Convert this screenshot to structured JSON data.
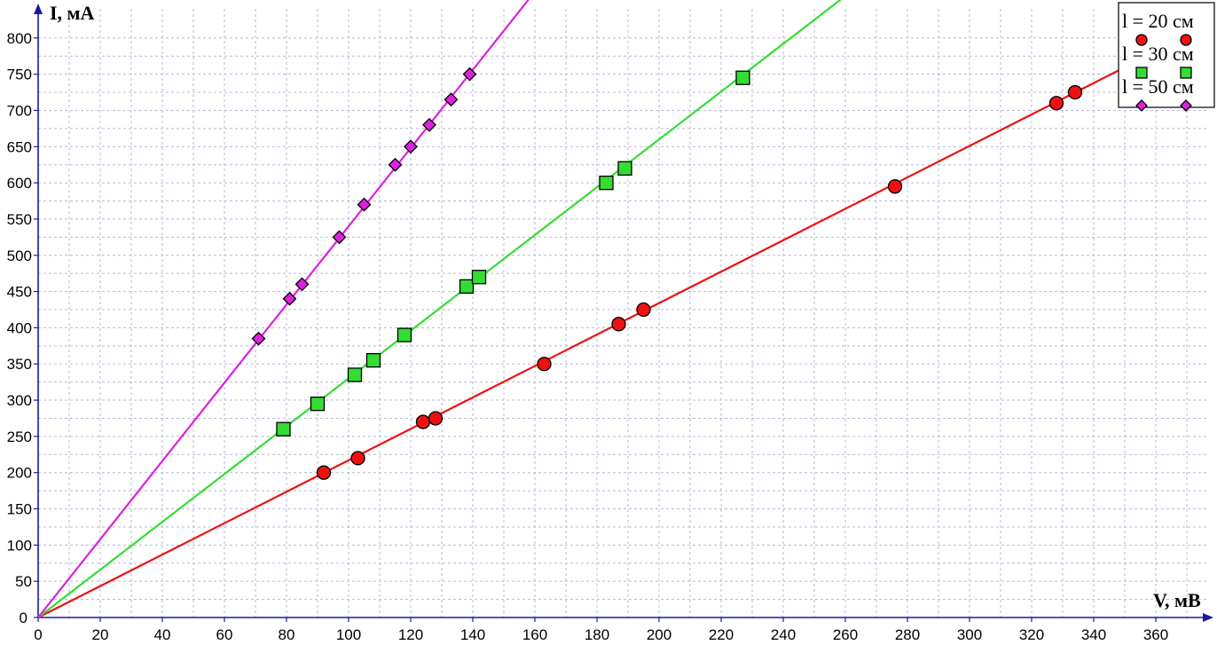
{
  "chart_data": {
    "type": "scatter",
    "xlabel": "V, мВ",
    "ylabel": "I, мА",
    "xlim": [
      0,
      370
    ],
    "ylim": [
      0,
      820
    ],
    "x_ticks": [
      0,
      20,
      40,
      60,
      80,
      100,
      120,
      140,
      160,
      180,
      200,
      220,
      240,
      260,
      280,
      300,
      320,
      340,
      360
    ],
    "y_ticks": [
      0,
      50,
      100,
      150,
      200,
      250,
      300,
      350,
      400,
      450,
      500,
      550,
      600,
      650,
      700,
      750,
      800
    ],
    "grid": true,
    "legend_position": "top-right",
    "series": [
      {
        "name": "l = 20 см",
        "color": "#ee1111",
        "marker": "circle",
        "fit_slope": 2.17,
        "x": [
          92,
          103,
          124,
          128,
          163,
          187,
          195,
          276,
          328,
          334
        ],
        "y": [
          200,
          220,
          270,
          275,
          350,
          405,
          425,
          595,
          710,
          725
        ]
      },
      {
        "name": "l = 30 см",
        "color": "#33dd33",
        "marker": "square",
        "fit_slope": 3.3,
        "x": [
          79,
          90,
          102,
          108,
          118,
          138,
          142,
          183,
          189,
          227
        ],
        "y": [
          260,
          295,
          335,
          355,
          390,
          457,
          470,
          600,
          620,
          745
        ]
      },
      {
        "name": "l = 50 см",
        "color": "#dd22dd",
        "marker": "diamond",
        "fit_slope": 5.4,
        "x": [
          71,
          81,
          85,
          97,
          105,
          115,
          120,
          126,
          133,
          139
        ],
        "y": [
          385,
          440,
          460,
          525,
          570,
          625,
          650,
          680,
          715,
          750
        ]
      }
    ]
  }
}
